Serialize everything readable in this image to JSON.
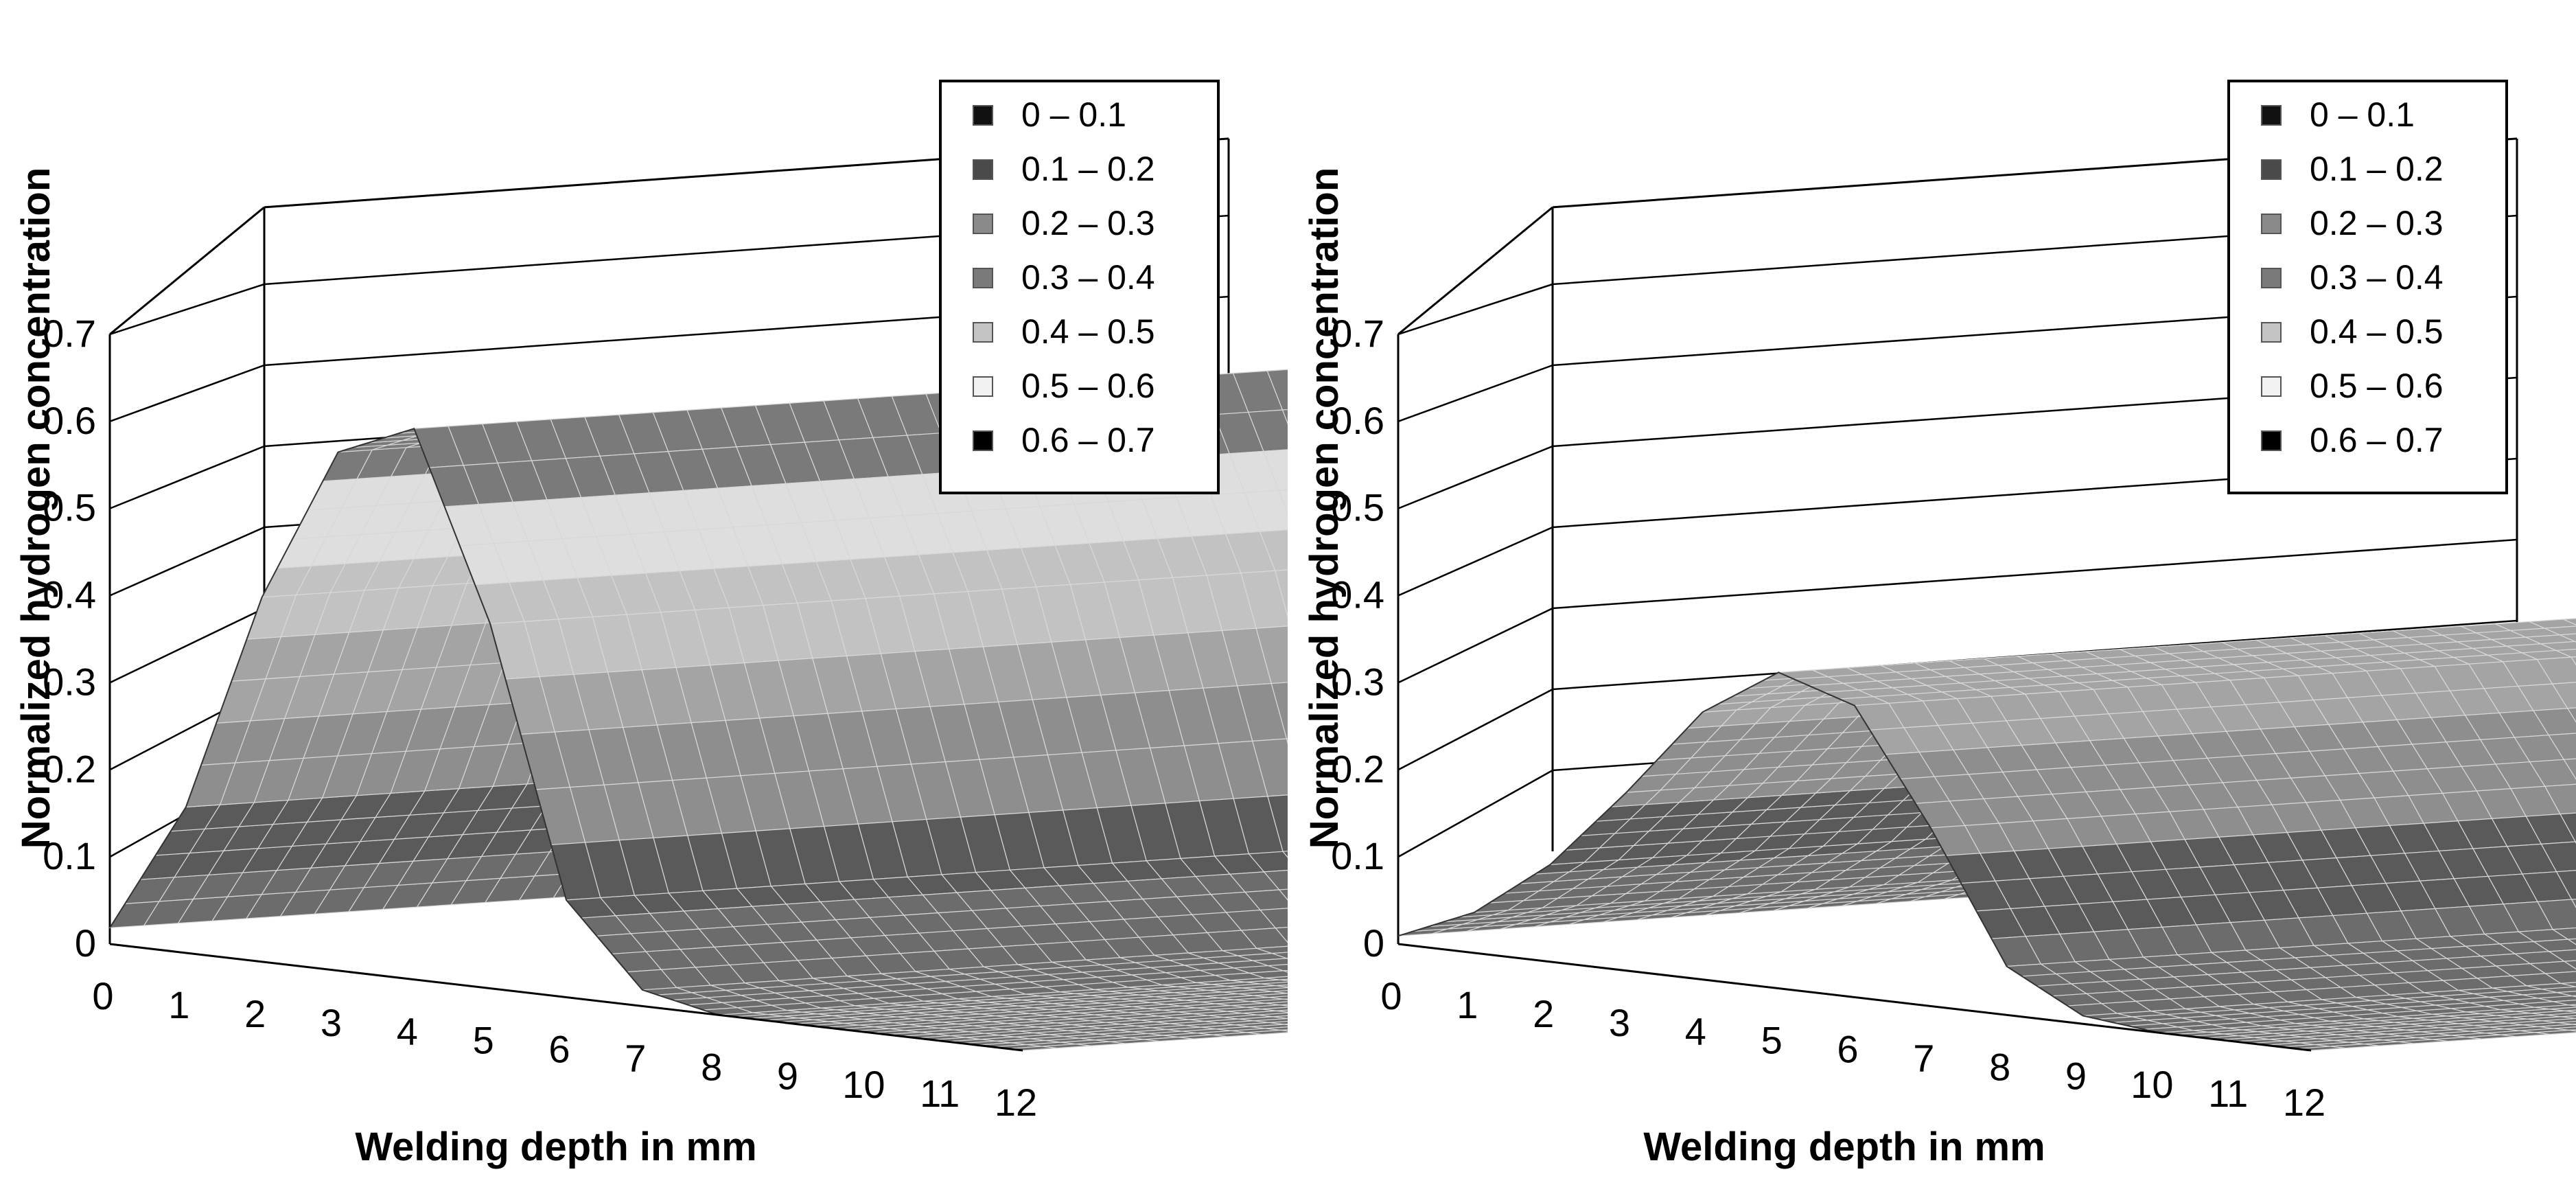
{
  "chart_data": [
    {
      "type": "surface3d",
      "title": "",
      "xlabel": "Welding depth in mm",
      "ylabel": "Normalized hydrogen concentration",
      "x_ticks": [
        "0",
        "1",
        "2",
        "3",
        "4",
        "5",
        "6",
        "7",
        "8",
        "9",
        "10",
        "11",
        "12"
      ],
      "y_ticks": [
        "0",
        "0.1",
        "0.2",
        "0.3",
        "0.4",
        "0.5",
        "0.6",
        "0.7"
      ],
      "ylim": [
        0,
        0.7
      ],
      "xlim": [
        0,
        12
      ],
      "peak": {
        "depth_mm": 3.5,
        "value": 0.69
      },
      "profile": {
        "x": [
          0,
          1,
          2,
          3,
          4,
          5,
          6,
          7,
          8,
          9,
          10,
          11,
          12
        ],
        "values": [
          0.02,
          0.18,
          0.45,
          0.64,
          0.68,
          0.45,
          0.12,
          0.02,
          0,
          0,
          0,
          0,
          0
        ]
      },
      "legend": {
        "placement": "top-right",
        "entries": [
          {
            "label": "0 – 0.1",
            "color": "#111111"
          },
          {
            "label": "0.1 – 0.2",
            "color": "#4a4a4a"
          },
          {
            "label": "0.2 – 0.3",
            "color": "#8a8a8a"
          },
          {
            "label": "0.3 – 0.4",
            "color": "#7a7a7a"
          },
          {
            "label": "0.4 – 0.5",
            "color": "#c4c4c4"
          },
          {
            "label": "0.5 – 0.6",
            "color": "#f2f2f2"
          },
          {
            "label": "0.6 – 0.7",
            "color": "#000000"
          }
        ]
      }
    },
    {
      "type": "surface3d",
      "title": "",
      "xlabel": "Welding depth in mm",
      "ylabel": "Normalized hydrogen concentration",
      "x_ticks": [
        "0",
        "1",
        "2",
        "3",
        "4",
        "5",
        "6",
        "7",
        "8",
        "9",
        "10",
        "11",
        "12"
      ],
      "y_ticks": [
        "0",
        "0.1",
        "0.2",
        "0.3",
        "0.4",
        "0.5",
        "0.6",
        "0.7"
      ],
      "ylim": [
        0,
        0.7
      ],
      "xlim": [
        0,
        12
      ],
      "peak": {
        "depth_mm": 5,
        "value": 0.4
      },
      "profile": {
        "x": [
          0,
          1,
          2,
          3,
          4,
          5,
          6,
          7,
          8,
          9,
          10,
          11,
          12
        ],
        "values": [
          0.01,
          0.05,
          0.12,
          0.22,
          0.33,
          0.39,
          0.36,
          0.22,
          0.06,
          0.01,
          0,
          0,
          0
        ]
      },
      "legend": {
        "placement": "top-right",
        "entries": [
          {
            "label": "0 – 0.1",
            "color": "#111111"
          },
          {
            "label": "0.1 – 0.2",
            "color": "#4a4a4a"
          },
          {
            "label": "0.2 – 0.3",
            "color": "#8a8a8a"
          },
          {
            "label": "0.3 – 0.4",
            "color": "#7a7a7a"
          },
          {
            "label": "0.4 – 0.5",
            "color": "#c4c4c4"
          },
          {
            "label": "0.5 – 0.6",
            "color": "#f2f2f2"
          },
          {
            "label": "0.6 – 0.7",
            "color": "#000000"
          }
        ]
      }
    }
  ]
}
